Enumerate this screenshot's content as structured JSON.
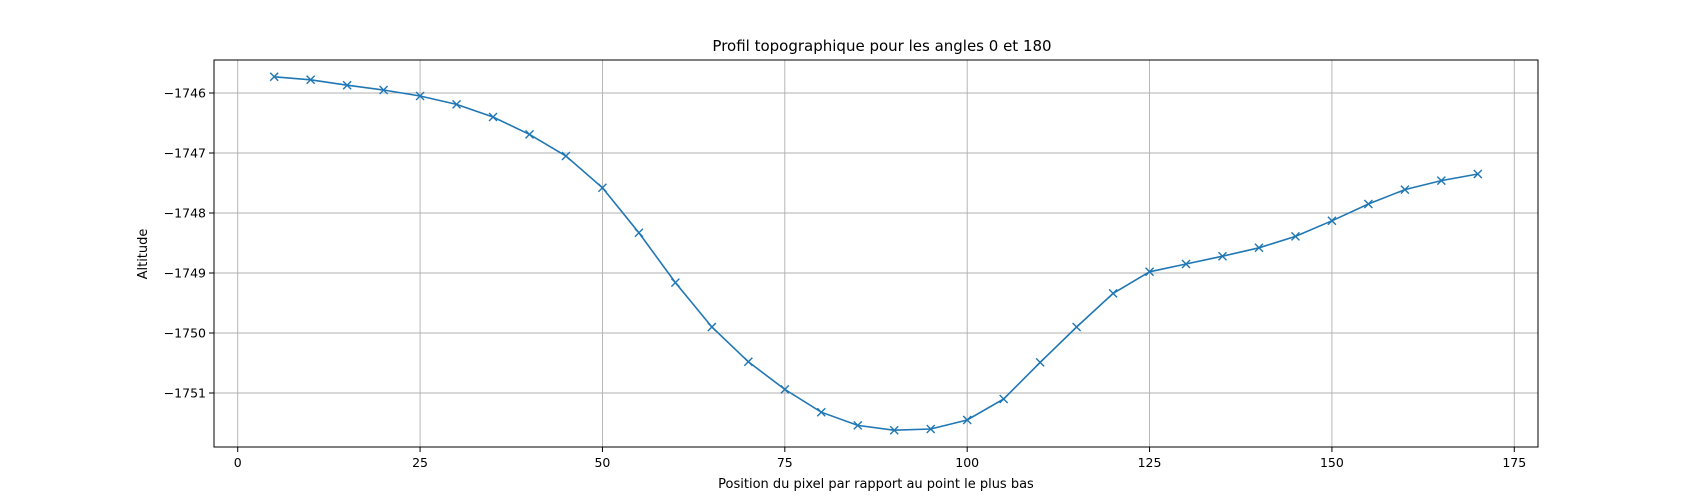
{
  "chart_data": {
    "type": "line",
    "title": "Profil topographique pour les angles 0 et 180",
    "xlabel": "Position du pixel par rapport au point le plus bas",
    "ylabel": "Altitude",
    "xlim": [
      -3.25,
      178.25
    ],
    "ylim": [
      -1751.9,
      -1745.45
    ],
    "xticks": [
      0,
      25,
      50,
      75,
      100,
      125,
      150,
      175
    ],
    "yticks": [
      -1746,
      -1747,
      -1748,
      -1749,
      -1750,
      -1751
    ],
    "grid": true,
    "marker": "x",
    "color": "#1f77b4",
    "series": [
      {
        "x": [
          5,
          10,
          15,
          20,
          25,
          30,
          35,
          40,
          45,
          50,
          55,
          60,
          65,
          70,
          75,
          80,
          85,
          90,
          95,
          100,
          105,
          110,
          115,
          120,
          125,
          130,
          135,
          140,
          145,
          150,
          155,
          160,
          165,
          170
        ],
        "y": [
          -1745.73,
          -1745.78,
          -1745.87,
          -1745.95,
          -1746.05,
          -1746.19,
          -1746.4,
          -1746.69,
          -1747.05,
          -1747.58,
          -1748.33,
          -1749.16,
          -1749.9,
          -1750.48,
          -1750.94,
          -1751.32,
          -1751.54,
          -1751.62,
          -1751.6,
          -1751.45,
          -1751.1,
          -1750.49,
          -1749.9,
          -1749.34,
          -1748.98,
          -1748.85,
          -1748.72,
          -1748.58,
          -1748.39,
          -1748.13,
          -1747.85,
          -1747.61,
          -1747.46,
          -1747.35
        ]
      }
    ]
  }
}
